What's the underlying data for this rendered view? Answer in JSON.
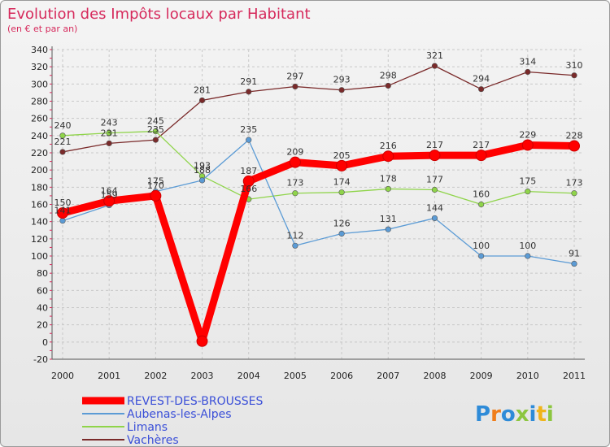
{
  "chart_data": {
    "type": "line",
    "title": "Evolution des Impôts locaux par Habitant",
    "subtitle": "(en € et par an)",
    "xlabel": "",
    "ylabel": "",
    "ylim": [
      -20,
      340
    ],
    "yticks": [
      -20,
      0,
      20,
      40,
      60,
      80,
      100,
      120,
      140,
      160,
      180,
      200,
      220,
      240,
      260,
      280,
      300,
      320,
      340
    ],
    "categories": [
      "2000",
      "2001",
      "2002",
      "2003",
      "2004",
      "2005",
      "2006",
      "2007",
      "2008",
      "2009",
      "2010",
      "2011"
    ],
    "grid": true,
    "legend_position": "bottom-left",
    "series": [
      {
        "name": "REVEST-DES-BROUSSES",
        "color": "#ff0000",
        "values": [
          150,
          164,
          170,
          1,
          187,
          209,
          205,
          216,
          217,
          217,
          229,
          228
        ],
        "labels": [
          "150",
          "164",
          "170",
          "",
          "187",
          "209",
          "205",
          "216",
          "217",
          "217",
          "229",
          "228"
        ]
      },
      {
        "name": "Aubenas-les-Alpes",
        "color": "#5b9bd5",
        "values": [
          141,
          159,
          175,
          188,
          235,
          112,
          126,
          131,
          144,
          100,
          100,
          91
        ],
        "labels": [
          "141",
          "159",
          "175",
          "188",
          "235",
          "112",
          "126",
          "131",
          "144",
          "100",
          "100",
          "91"
        ]
      },
      {
        "name": "Limans",
        "color": "#8fd44a",
        "values": [
          240,
          243,
          245,
          193,
          166,
          173,
          174,
          178,
          177,
          160,
          175,
          173
        ],
        "labels": [
          "240",
          "243",
          "245",
          "193",
          "166",
          "173",
          "174",
          "178",
          "177",
          "160",
          "175",
          "173"
        ]
      },
      {
        "name": "Vachères",
        "color": "#7a2a2a",
        "values": [
          221,
          231,
          235,
          281,
          291,
          297,
          293,
          298,
          321,
          294,
          314,
          310
        ],
        "labels": [
          "221",
          "231",
          "235",
          "281",
          "291",
          "297",
          "293",
          "298",
          "321",
          "294",
          "314",
          "310"
        ]
      }
    ]
  },
  "logo": {
    "text": "Proxiti"
  }
}
